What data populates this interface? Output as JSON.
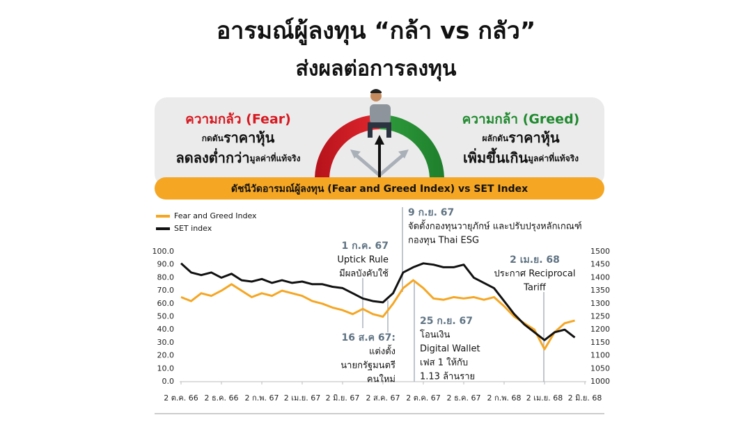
{
  "header": {
    "title": "อารมณ์ผู้ลงทุน “กล้า vs กลัว”",
    "subtitle": "ส่งผลต่อการลงทุน"
  },
  "fear": {
    "label": "ความกลัว (Fear)",
    "line1": [
      "กดดัน",
      "ราคาหุ้น"
    ],
    "line2": [
      "ลดลงต่ำกว่า",
      "มูลค่าที่แท้จริง"
    ]
  },
  "greed": {
    "label": "ความกล้า (Greed)",
    "line1": [
      "ผลักดัน",
      "ราคาหุ้น"
    ],
    "line2": [
      "เพิ่มขึ้นเกิน",
      "มูลค่าที่แท้จริง"
    ]
  },
  "banner": "ดัชนีวัดอารมณ์ผู้ลงทุน (Fear and Greed Index) vs SET Index",
  "chart_data": {
    "type": "line",
    "categories": [
      "2 ต.ค. 66",
      null,
      null,
      null,
      "2 ธ.ค. 66",
      null,
      null,
      null,
      "2 ก.พ. 67",
      null,
      null,
      null,
      "2 เม.ย. 67",
      null,
      null,
      null,
      "2 มิ.ย. 67",
      null,
      null,
      null,
      "2 ส.ค. 67",
      null,
      null,
      null,
      "2 ต.ค. 67",
      null,
      null,
      null,
      "2 ธ.ค. 67",
      null,
      null,
      null,
      "2 ก.พ. 68",
      null,
      null,
      null,
      "2 เม.ย. 68",
      null,
      null,
      null,
      "2 มิ.ย. 68"
    ],
    "series": [
      {
        "name": "Fear and Greed Index",
        "color": "#f5a623",
        "values": [
          65,
          62,
          68,
          66,
          70,
          75,
          70,
          65,
          68,
          66,
          70,
          68,
          66,
          62,
          60,
          57,
          55,
          52,
          56,
          52,
          50,
          60,
          72,
          78,
          72,
          64,
          63,
          65,
          64,
          65,
          63,
          65,
          58,
          50,
          45,
          40,
          25,
          38,
          45,
          47,
          null
        ]
      },
      {
        "name": "SET index",
        "color": "#111111",
        "axis": "y2",
        "values": [
          1455,
          1420,
          1410,
          1420,
          1400,
          1415,
          1390,
          1385,
          1395,
          1380,
          1390,
          1380,
          1385,
          1375,
          1375,
          1365,
          1360,
          1340,
          1320,
          1310,
          1305,
          1340,
          1420,
          1440,
          1455,
          1450,
          1440,
          1440,
          1450,
          1400,
          1380,
          1360,
          1310,
          1260,
          1220,
          1190,
          1160,
          1190,
          1200,
          1170,
          null
        ]
      }
    ],
    "ylim": [
      0,
      100
    ],
    "yticks": [
      {
        "value": 0,
        "label": "0.0"
      },
      {
        "value": 10,
        "label": "10.0"
      },
      {
        "value": 20,
        "label": "20.0"
      },
      {
        "value": 30,
        "label": "30.0"
      },
      {
        "value": 40,
        "label": "40.0"
      },
      {
        "value": 50,
        "label": "50.0"
      },
      {
        "value": 60,
        "label": "60.0"
      },
      {
        "value": 70,
        "label": "70.0"
      },
      {
        "value": 80,
        "label": "80.0"
      },
      {
        "value": 90,
        "label": "90.0"
      },
      {
        "value": 100,
        "label": "100.0"
      }
    ],
    "y2lim": [
      1000,
      1500
    ],
    "y2ticks": [
      1000,
      1050,
      1100,
      1150,
      1200,
      1250,
      1300,
      1350,
      1400,
      1450,
      1500
    ],
    "legend": "upper left",
    "annotations": [
      {
        "date": "1 ก.ค. 67",
        "text": [
          "Uptick Rule",
          "มีผลบังคับใช้"
        ]
      },
      {
        "date": "16 ส.ค 67:",
        "text": [
          "แต่งตั้ง",
          "นายกรัฐมนตรี",
          "คนใหม่"
        ]
      },
      {
        "date": "9 ก.ย. 67",
        "text": [
          "จัดตั้งกองทุนวายุภักษ์ และปรับปรุงหลักเกณฑ์",
          "กองทุน Thai ESG"
        ]
      },
      {
        "date": "25 ก.ย. 67",
        "text": [
          "โอนเงิน",
          "Digital Wallet",
          "เฟส 1 ให้กับ",
          "1.13 ล้านราย"
        ]
      },
      {
        "date": "2 เม.ย. 68",
        "text": [
          "ประกาศ Reciprocal",
          "Tariff"
        ]
      }
    ]
  }
}
